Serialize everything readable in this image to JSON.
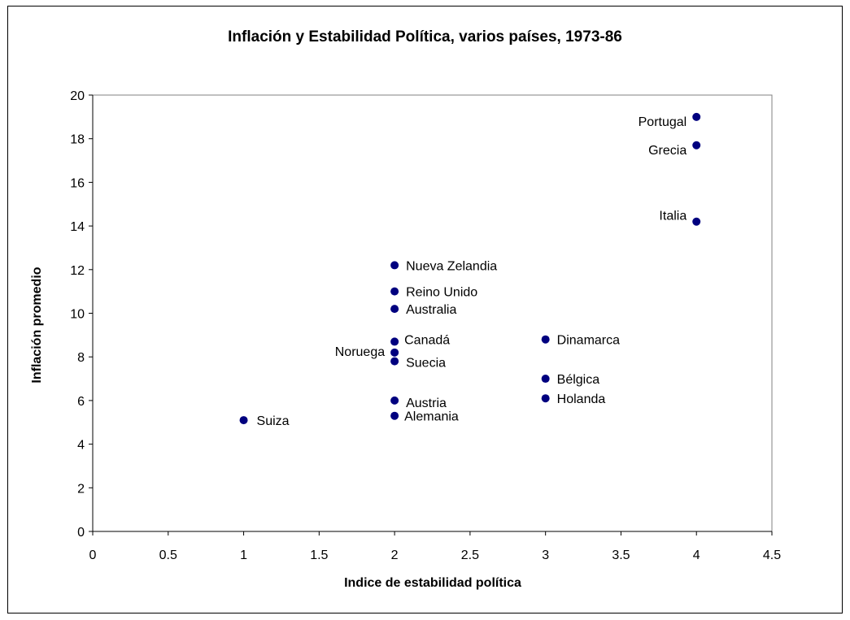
{
  "chart_data": {
    "type": "scatter",
    "title": "Inflación y Estabilidad Política, varios países, 1973-86",
    "xlabel": "Indice de estabilidad política",
    "ylabel": "Inflación promedio",
    "xlim": [
      0,
      4.5
    ],
    "ylim": [
      0,
      20
    ],
    "x_ticks": [
      "0",
      "0.5",
      "1",
      "1.5",
      "2",
      "2.5",
      "3",
      "3.5",
      "4",
      "4.5"
    ],
    "y_ticks": [
      "0",
      "2",
      "4",
      "6",
      "8",
      "10",
      "12",
      "14",
      "16",
      "18",
      "20"
    ],
    "grid": false,
    "legend": "none",
    "marker_color": "#00007f",
    "points": [
      {
        "label": "Portugal",
        "x": 4,
        "y": 19.0
      },
      {
        "label": "Grecia",
        "x": 4,
        "y": 17.7
      },
      {
        "label": "Italia",
        "x": 4,
        "y": 14.2
      },
      {
        "label": "Nueva Zelandia",
        "x": 2,
        "y": 12.2
      },
      {
        "label": "Reino Unido",
        "x": 2,
        "y": 11.0
      },
      {
        "label": "Australia",
        "x": 2,
        "y": 10.2
      },
      {
        "label": "Canadá",
        "x": 2,
        "y": 8.7
      },
      {
        "label": "Noruega",
        "x": 2,
        "y": 8.2
      },
      {
        "label": "Suecia",
        "x": 2,
        "y": 7.8
      },
      {
        "label": "Dinamarca",
        "x": 3,
        "y": 8.8
      },
      {
        "label": "Bélgica",
        "x": 3,
        "y": 7.0
      },
      {
        "label": "Holanda",
        "x": 3,
        "y": 6.1
      },
      {
        "label": "Austria",
        "x": 2,
        "y": 6.0
      },
      {
        "label": "Alemania",
        "x": 2,
        "y": 5.3
      },
      {
        "label": "Suiza",
        "x": 1,
        "y": 5.1
      }
    ]
  }
}
